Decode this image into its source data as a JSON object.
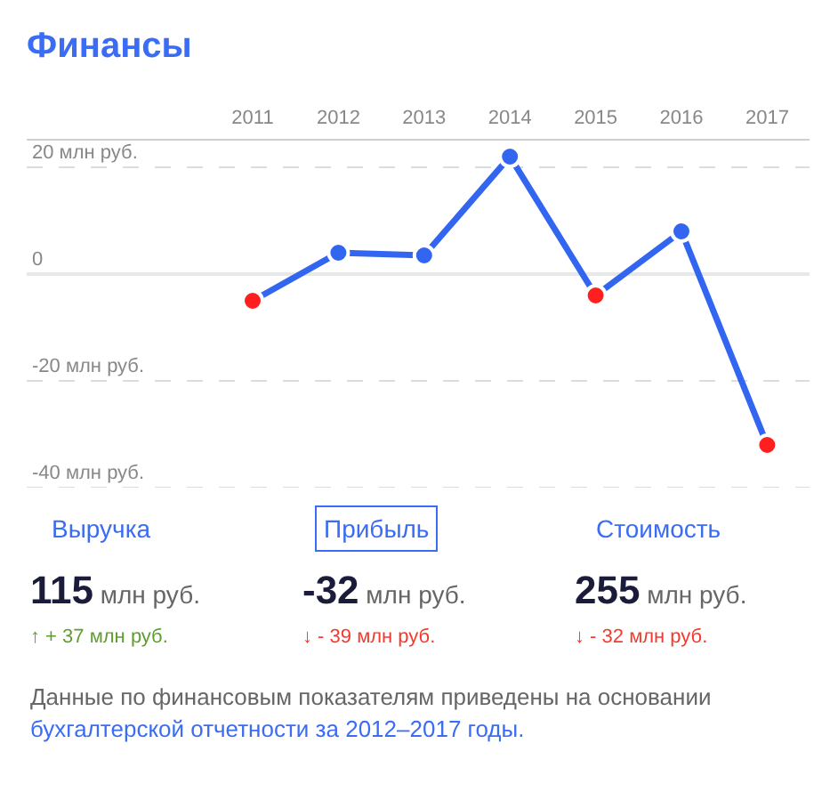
{
  "chart_data": {
    "type": "line",
    "title": "Финансы",
    "categories": [
      "2011",
      "2012",
      "2013",
      "2014",
      "2015",
      "2016",
      "2017"
    ],
    "values": [
      -5,
      4,
      3.5,
      22,
      -4,
      8,
      -32
    ],
    "color": "#3366f0",
    "colors": [
      "#ff1f1f",
      "#3366f0",
      "#3366f0",
      "#3366f0",
      "#ff1f1f",
      "#3366f0",
      "#ff1f1f"
    ],
    "ylim": [
      -40,
      25
    ],
    "yticks": [
      {
        "value": 20,
        "label": "20 млн руб."
      },
      0,
      {
        "value": -20,
        "label": "-20 млн руб."
      },
      {
        "value": -40,
        "label": "-40 млн руб."
      }
    ],
    "grid": "y",
    "marker": "circle",
    "line_style": "solid",
    "annotations": [
      "Выручка",
      "Прибыль",
      "Стоимость",
      "115 млн руб.",
      "-32 млн руб.",
      "255 млн руб.",
      "↑ + 37 млн руб.",
      "↓ - 39 млн руб.",
      "↓ - 32 млн руб.",
      "Данные по финансовым показателям приведены на основании",
      "бухгалтерской отчетности за 2012–2017 годы."
    ]
  }
}
